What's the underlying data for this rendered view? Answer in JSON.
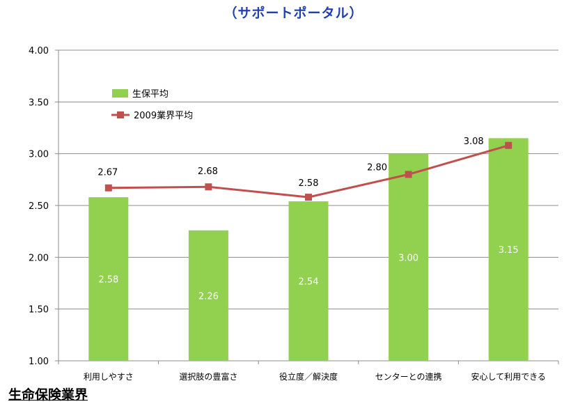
{
  "title": "（サポートポータル）",
  "footer": "生命保険業界",
  "chart_data": {
    "type": "bar+line",
    "categories": [
      "利用しやすさ",
      "選択肢の豊富さ",
      "役立度／解決度",
      "センターとの連携",
      "安心して利用できる"
    ],
    "series": [
      {
        "name": "生保平均",
        "kind": "bar",
        "values": [
          2.58,
          2.26,
          2.54,
          3.0,
          3.15
        ],
        "bar_values": [
          2.58,
          2.26,
          2.54,
          3.0,
          3.15
        ],
        "labels": [
          "2.58",
          "2.26",
          "2.54",
          "3.00",
          "3.15"
        ],
        "color": "#92d050"
      },
      {
        "name": "2009業界平均",
        "kind": "line",
        "values": [
          2.67,
          2.68,
          2.58,
          2.8,
          3.08
        ],
        "labels": [
          "2.67",
          "2.68",
          "2.58",
          "2.80",
          "3.08"
        ],
        "color": "#c0504d"
      }
    ],
    "ylim": [
      1.0,
      4.0
    ],
    "yticks": [
      "1.00",
      "1.50",
      "2.00",
      "2.50",
      "3.00",
      "3.50",
      "4.00"
    ],
    "grid": true,
    "legend": "top-left"
  }
}
